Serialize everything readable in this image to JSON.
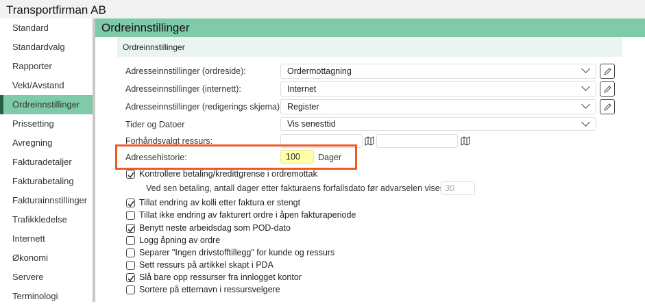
{
  "app_title": "Transportfirman AB",
  "sidebar": {
    "items": [
      {
        "label": "Standard"
      },
      {
        "label": "Standardvalg"
      },
      {
        "label": "Rapporter"
      },
      {
        "label": "Vekt/Avstand"
      },
      {
        "label": "Ordreinnstillinger",
        "active": true
      },
      {
        "label": "Prissetting"
      },
      {
        "label": "Avregning"
      },
      {
        "label": "Fakturadetaljer"
      },
      {
        "label": "Fakturabetaling"
      },
      {
        "label": "Fakturainnstillinger"
      },
      {
        "label": "Trafikkledelse"
      },
      {
        "label": "Internett"
      },
      {
        "label": "Økonomi"
      },
      {
        "label": "Servere"
      },
      {
        "label": "Terminologi"
      }
    ]
  },
  "main": {
    "title": "Ordreinnstillinger",
    "section_title": "Ordreinnstillinger"
  },
  "form": {
    "addr_order_label": "Adresseinnstillinger (ordreside):",
    "addr_order_value": "Ordermottagning",
    "addr_internet_label": "Adresseinnstillinger (internett):",
    "addr_internet_value": "Internet",
    "addr_edit_label": "Adresseinnstillinger (redigerings skjema):",
    "addr_edit_value": "Register",
    "times_label": "Tider og Datoer",
    "times_value": "Vis senesttid",
    "resource_label": "Forhåndsvalgt ressurs:",
    "resource_value_1": "",
    "resource_value_2": "",
    "history_label": "Adressehistorie:",
    "history_value": "100",
    "history_unit": "Dager",
    "late_payment_label": "Ved sen betaling, antall dager etter fakturaens forfallsdato før advarselen vises:",
    "late_payment_placeholder": "30"
  },
  "checkboxes": [
    {
      "label": "Kontrollere betaling/kredittgrense i ordremottak",
      "checked": true
    },
    {
      "label": "Tillat endring av kolli etter faktura er stengt",
      "checked": true
    },
    {
      "label": "Tillat ikke endring av fakturert ordre i åpen fakturaperiode",
      "checked": false
    },
    {
      "label": "Benytt neste arbeidsdag som POD-dato",
      "checked": true
    },
    {
      "label": "Logg åpning av ordre",
      "checked": false
    },
    {
      "label": "Separer \"Ingen drivstofftillegg\" for kunde og ressurs",
      "checked": false
    },
    {
      "label": "Sett ressurs på artikkel skapt i PDA",
      "checked": false
    },
    {
      "label": "Slå bare opp ressurser fra innlogget kontor",
      "checked": true
    },
    {
      "label": "Sortere på etternavn i ressursvelgere",
      "checked": false
    }
  ],
  "colors": {
    "accent": "#7ecaa9",
    "highlight": "#f05a22",
    "input_highlight": "#ffffa8"
  }
}
